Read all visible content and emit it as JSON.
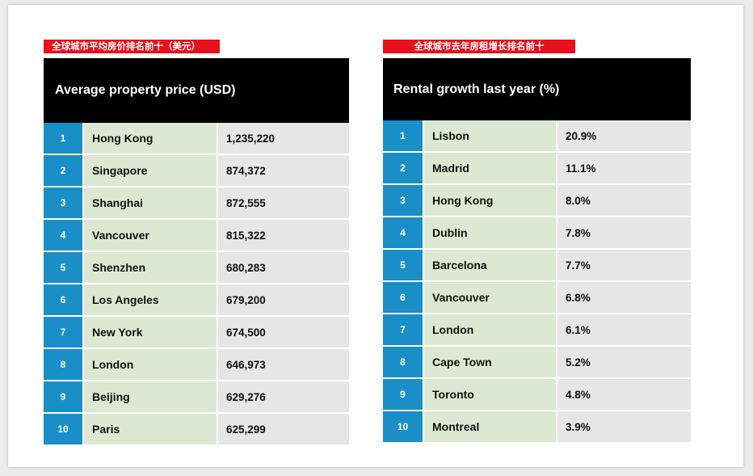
{
  "chart_data": [
    {
      "type": "table",
      "label": "全球城市平均房价排名前十（美元）",
      "title": "Average property price (USD)",
      "rows": [
        {
          "rank": "1",
          "city": "Hong Kong",
          "value": "1,235,220"
        },
        {
          "rank": "2",
          "city": "Singapore",
          "value": "874,372"
        },
        {
          "rank": "3",
          "city": "Shanghai",
          "value": "872,555"
        },
        {
          "rank": "4",
          "city": "Vancouver",
          "value": "815,322"
        },
        {
          "rank": "5",
          "city": "Shenzhen",
          "value": "680,283"
        },
        {
          "rank": "6",
          "city": "Los Angeles",
          "value": "679,200"
        },
        {
          "rank": "7",
          "city": "New York",
          "value": "674,500"
        },
        {
          "rank": "8",
          "city": "London",
          "value": "646,973"
        },
        {
          "rank": "9",
          "city": "Beijing",
          "value": "629,276"
        },
        {
          "rank": "10",
          "city": "Paris",
          "value": "625,299"
        }
      ]
    },
    {
      "type": "table",
      "label": "全球城市去年房租增长排名前十",
      "title": "Rental growth last year (%)",
      "rows": [
        {
          "rank": "1",
          "city": "Lisbon",
          "value": "20.9%"
        },
        {
          "rank": "2",
          "city": "Madrid",
          "value": "11.1%"
        },
        {
          "rank": "3",
          "city": "Hong Kong",
          "value": "8.0%"
        },
        {
          "rank": "4",
          "city": "Dublin",
          "value": "7.8%"
        },
        {
          "rank": "5",
          "city": "Barcelona",
          "value": "7.7%"
        },
        {
          "rank": "6",
          "city": "Vancouver",
          "value": "6.8%"
        },
        {
          "rank": "7",
          "city": "London",
          "value": "6.1%"
        },
        {
          "rank": "8",
          "city": "Cape Town",
          "value": "5.2%"
        },
        {
          "rank": "9",
          "city": "Toronto",
          "value": "4.8%"
        },
        {
          "rank": "10",
          "city": "Montreal",
          "value": "3.9%"
        }
      ]
    }
  ],
  "colors": {
    "tag_red": "#e8101b",
    "header_black": "#000000",
    "rank_blue": "#1a8fc7",
    "city_green": "#dde8d3",
    "value_gray": "#e6e6e6"
  }
}
